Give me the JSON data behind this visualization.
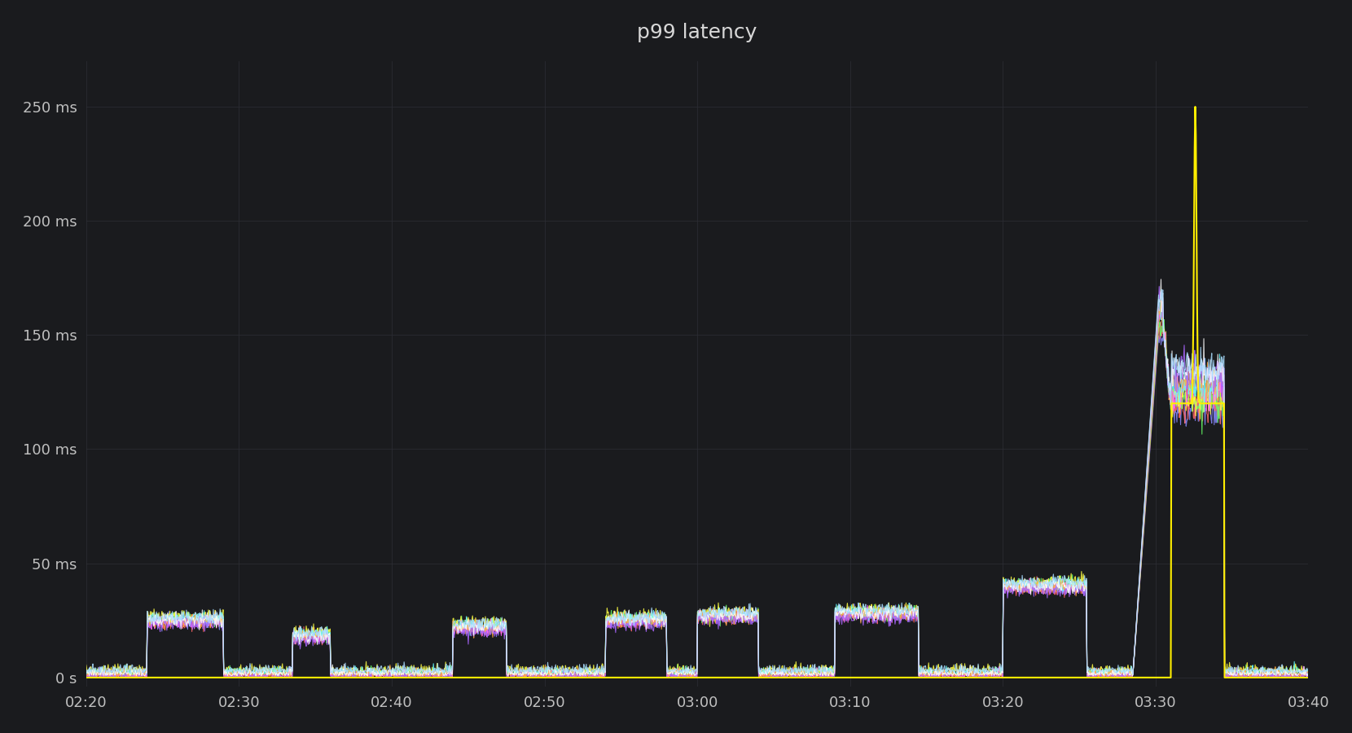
{
  "title": "p99 latency",
  "bg_color": "#1a1b1e",
  "plot_bg_color": "#1a1b1e",
  "grid_color": "#2e2f35",
  "text_color": "#c0c0c0",
  "title_color": "#d8d8d8",
  "yticks": [
    0,
    50,
    100,
    150,
    200,
    250
  ],
  "ytick_labels": [
    "0 s",
    "50 ms",
    "100 ms",
    "150 ms",
    "200 ms",
    "250 ms"
  ],
  "xtick_labels": [
    "02:20",
    "02:30",
    "02:40",
    "02:50",
    "03:00",
    "03:10",
    "03:20",
    "03:30",
    "03:40"
  ],
  "ylim": [
    -4,
    270
  ],
  "num_series": 10,
  "line_colors": [
    "#8888ff",
    "#ff6666",
    "#66ff66",
    "#ffff44",
    "#ff66ff",
    "#66ffff",
    "#ffaa44",
    "#aa66ff",
    "#ffffff",
    "#aaddff"
  ],
  "spike_color": "#ffee00",
  "line_width": 0.8
}
